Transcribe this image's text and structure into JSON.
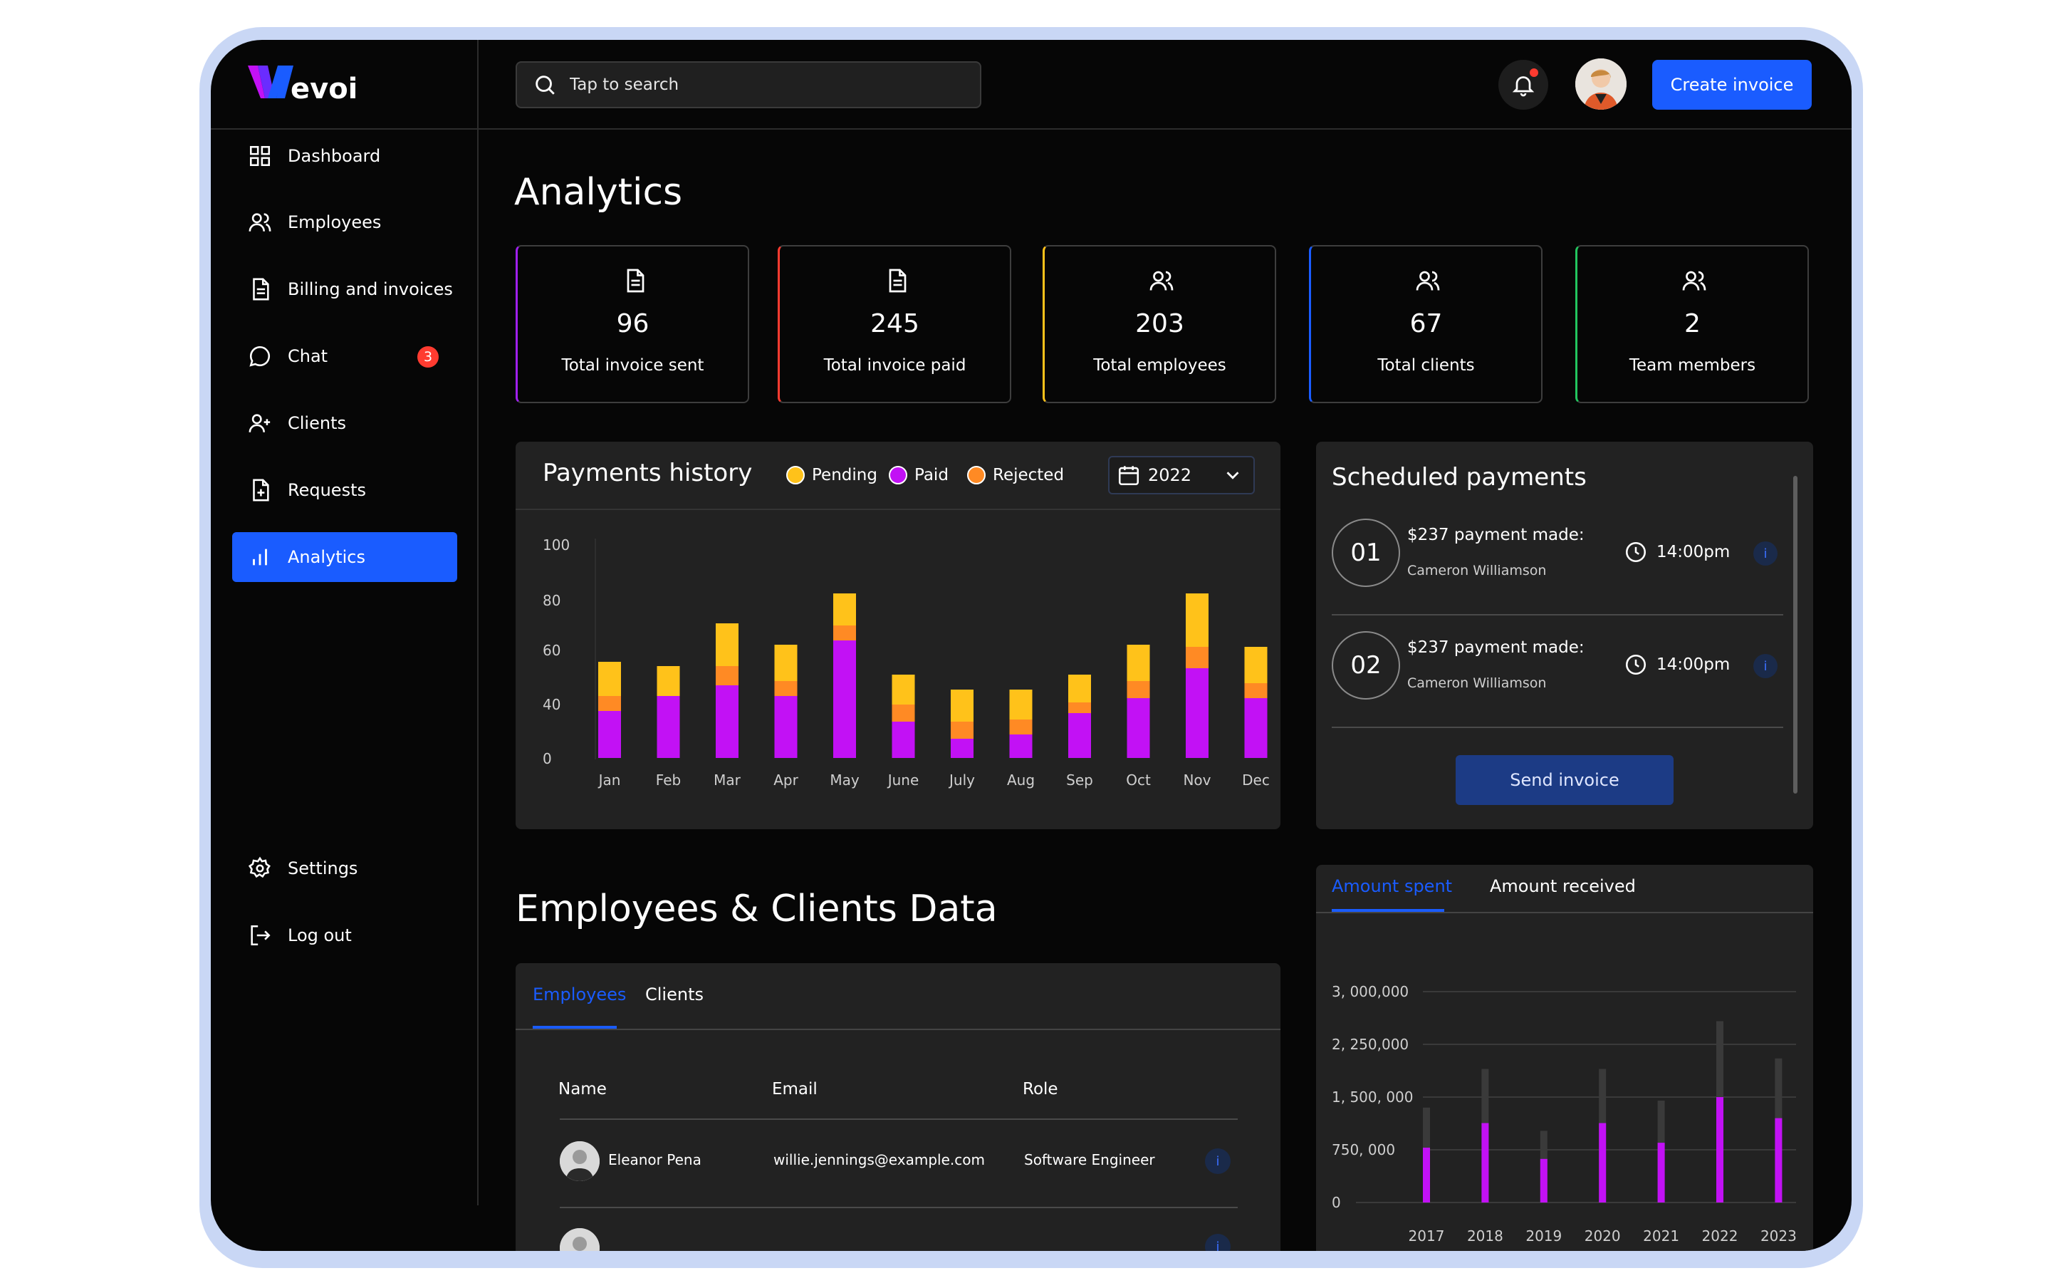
{
  "app": {
    "logo_text": "evoi"
  },
  "sidebar": {
    "items": [
      {
        "label": "Dashboard",
        "icon": "grid-icon"
      },
      {
        "label": "Employees",
        "icon": "users-icon"
      },
      {
        "label": "Billing and invoices",
        "icon": "document-icon"
      },
      {
        "label": "Chat",
        "icon": "chat-icon",
        "badge": "3"
      },
      {
        "label": "Clients",
        "icon": "user-plus-icon"
      },
      {
        "label": "Requests",
        "icon": "file-plus-icon"
      },
      {
        "label": "Analytics",
        "icon": "bar-chart-icon",
        "active": true
      }
    ],
    "bottom_items": [
      {
        "label": "Settings",
        "icon": "gear-icon"
      },
      {
        "label": "Log out",
        "icon": "logout-icon"
      }
    ]
  },
  "header": {
    "search_placeholder": "Tap to search",
    "create_button": "Create invoice",
    "accent_color": "#1a5cff"
  },
  "page": {
    "title": "Analytics"
  },
  "stats": [
    {
      "value": "96",
      "label": "Total invoice sent",
      "color": "#a020f0",
      "icon": "document-icon"
    },
    {
      "value": "245",
      "label": "Total invoice paid",
      "color": "#ff3b30",
      "icon": "document-icon"
    },
    {
      "value": "203",
      "label": "Total employees",
      "color": "#ffc21a",
      "icon": "users-icon"
    },
    {
      "value": "67",
      "label": "Total clients",
      "color": "#1a5cff",
      "icon": "users-icon"
    },
    {
      "value": "2",
      "label": "Team members",
      "color": "#22c55e",
      "icon": "users-icon"
    }
  ],
  "payments_history": {
    "title": "Payments history",
    "legend": [
      {
        "label": "Pending",
        "color": "#ffc21a"
      },
      {
        "label": "Paid",
        "color": "#c211f5"
      },
      {
        "label": "Rejected",
        "color": "#ff8a24"
      }
    ],
    "year": "2022"
  },
  "chart_data": [
    {
      "type": "bar",
      "stacked": true,
      "categories": [
        "Jan",
        "Feb",
        "Mar",
        "Apr",
        "May",
        "June",
        "July",
        "Aug",
        "Sep",
        "Oct",
        "Nov",
        "Dec"
      ],
      "series": [
        {
          "name": "Paid",
          "color": "#c211f5",
          "values": [
            22,
            29,
            34,
            29,
            55,
            17,
            9,
            11,
            21,
            28,
            42,
            28
          ]
        },
        {
          "name": "Rejected",
          "color": "#ff8a24",
          "values": [
            7,
            0,
            9,
            7,
            7,
            8,
            8,
            7,
            5,
            8,
            10,
            7
          ]
        },
        {
          "name": "Pending",
          "color": "#ffc21a",
          "values": [
            16,
            14,
            20,
            17,
            15,
            14,
            15,
            14,
            13,
            17,
            25,
            17
          ]
        }
      ],
      "yticks": [
        "100",
        "80",
        "60",
        "40",
        "0"
      ],
      "ylim": [
        0,
        100
      ],
      "grid": false
    },
    {
      "type": "bar",
      "categories": [
        "2017",
        "2018",
        "2019",
        "2020",
        "2021",
        "2022",
        "2023"
      ],
      "series": [
        {
          "name": "Amount spent",
          "color": "#c211f5",
          "values": [
            780000,
            1130000,
            620000,
            1130000,
            850000,
            1500000,
            1200000
          ]
        },
        {
          "name": "Total",
          "color": "#3a3a3a",
          "values": [
            1350000,
            1900000,
            1020000,
            1900000,
            1450000,
            2580000,
            2050000
          ]
        }
      ],
      "yticks": [
        "3, 000,000",
        "2, 250,000",
        "1, 500, 000",
        "750, 000",
        "0"
      ],
      "ylim": [
        0,
        3000000
      ],
      "grid": true
    }
  ],
  "scheduled": {
    "title": "Scheduled payments",
    "items": [
      {
        "num": "01",
        "title": "$237 payment made:",
        "name": "Cameron Williamson",
        "time": "14:00pm"
      },
      {
        "num": "02",
        "title": "$237 payment made:",
        "name": "Cameron Williamson",
        "time": "14:00pm"
      }
    ],
    "button": "Send invoice"
  },
  "amounts": {
    "tabs": [
      "Amount spent",
      "Amount received"
    ]
  },
  "employees_section": {
    "title": "Employees & Clients Data",
    "tabs": [
      "Employees",
      "Clients"
    ],
    "columns": [
      "Name",
      "Email",
      "Role"
    ],
    "rows": [
      {
        "name": "Eleanor Pena",
        "email": "willie.jennings@example.com",
        "role": "Software Engineer"
      }
    ]
  }
}
